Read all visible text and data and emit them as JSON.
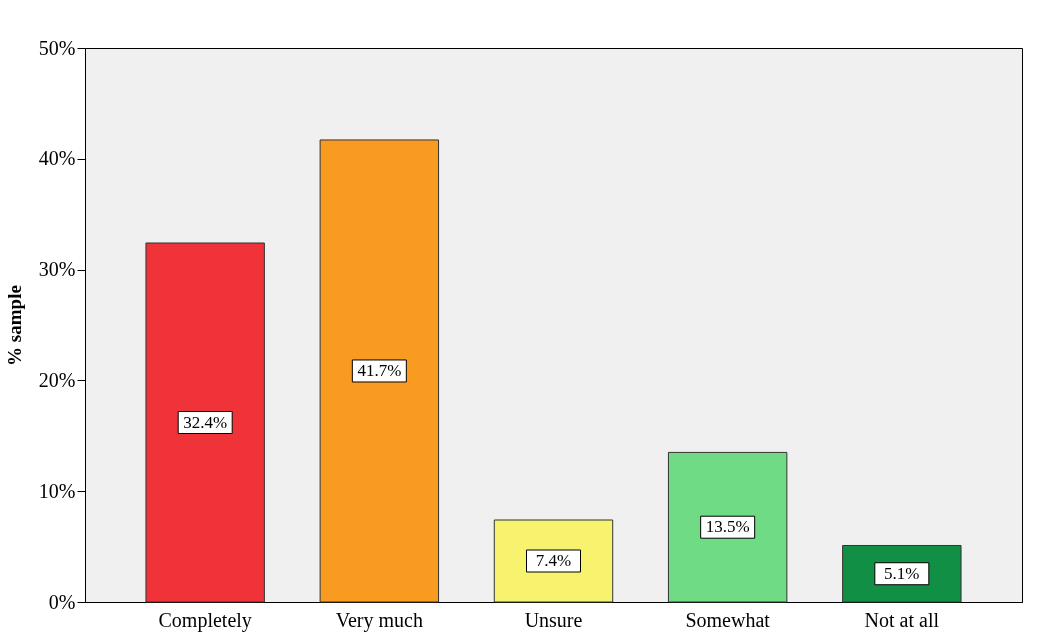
{
  "chart_data": {
    "type": "bar",
    "ylabel": "% sample",
    "categories": [
      "Completely",
      "Very much",
      "Unsure",
      "Somewhat",
      "Not at all"
    ],
    "values": [
      32.4,
      41.7,
      7.4,
      13.5,
      5.1
    ],
    "colors": [
      "#ef3338",
      "#f99b20",
      "#f8f36f",
      "#6fdb84",
      "#118f44"
    ],
    "value_labels": [
      "32.4%",
      "41.7%",
      "7.4%",
      "13.5%",
      "5.1%"
    ],
    "ylim": [
      0,
      50
    ],
    "yticks": [
      {
        "value": 0,
        "label": "0%"
      },
      {
        "value": 10,
        "label": "10%"
      },
      {
        "value": 20,
        "label": "20%"
      },
      {
        "value": 30,
        "label": "30%"
      },
      {
        "value": 40,
        "label": "40%"
      },
      {
        "value": 50,
        "label": "50%"
      }
    ],
    "grid": false
  }
}
